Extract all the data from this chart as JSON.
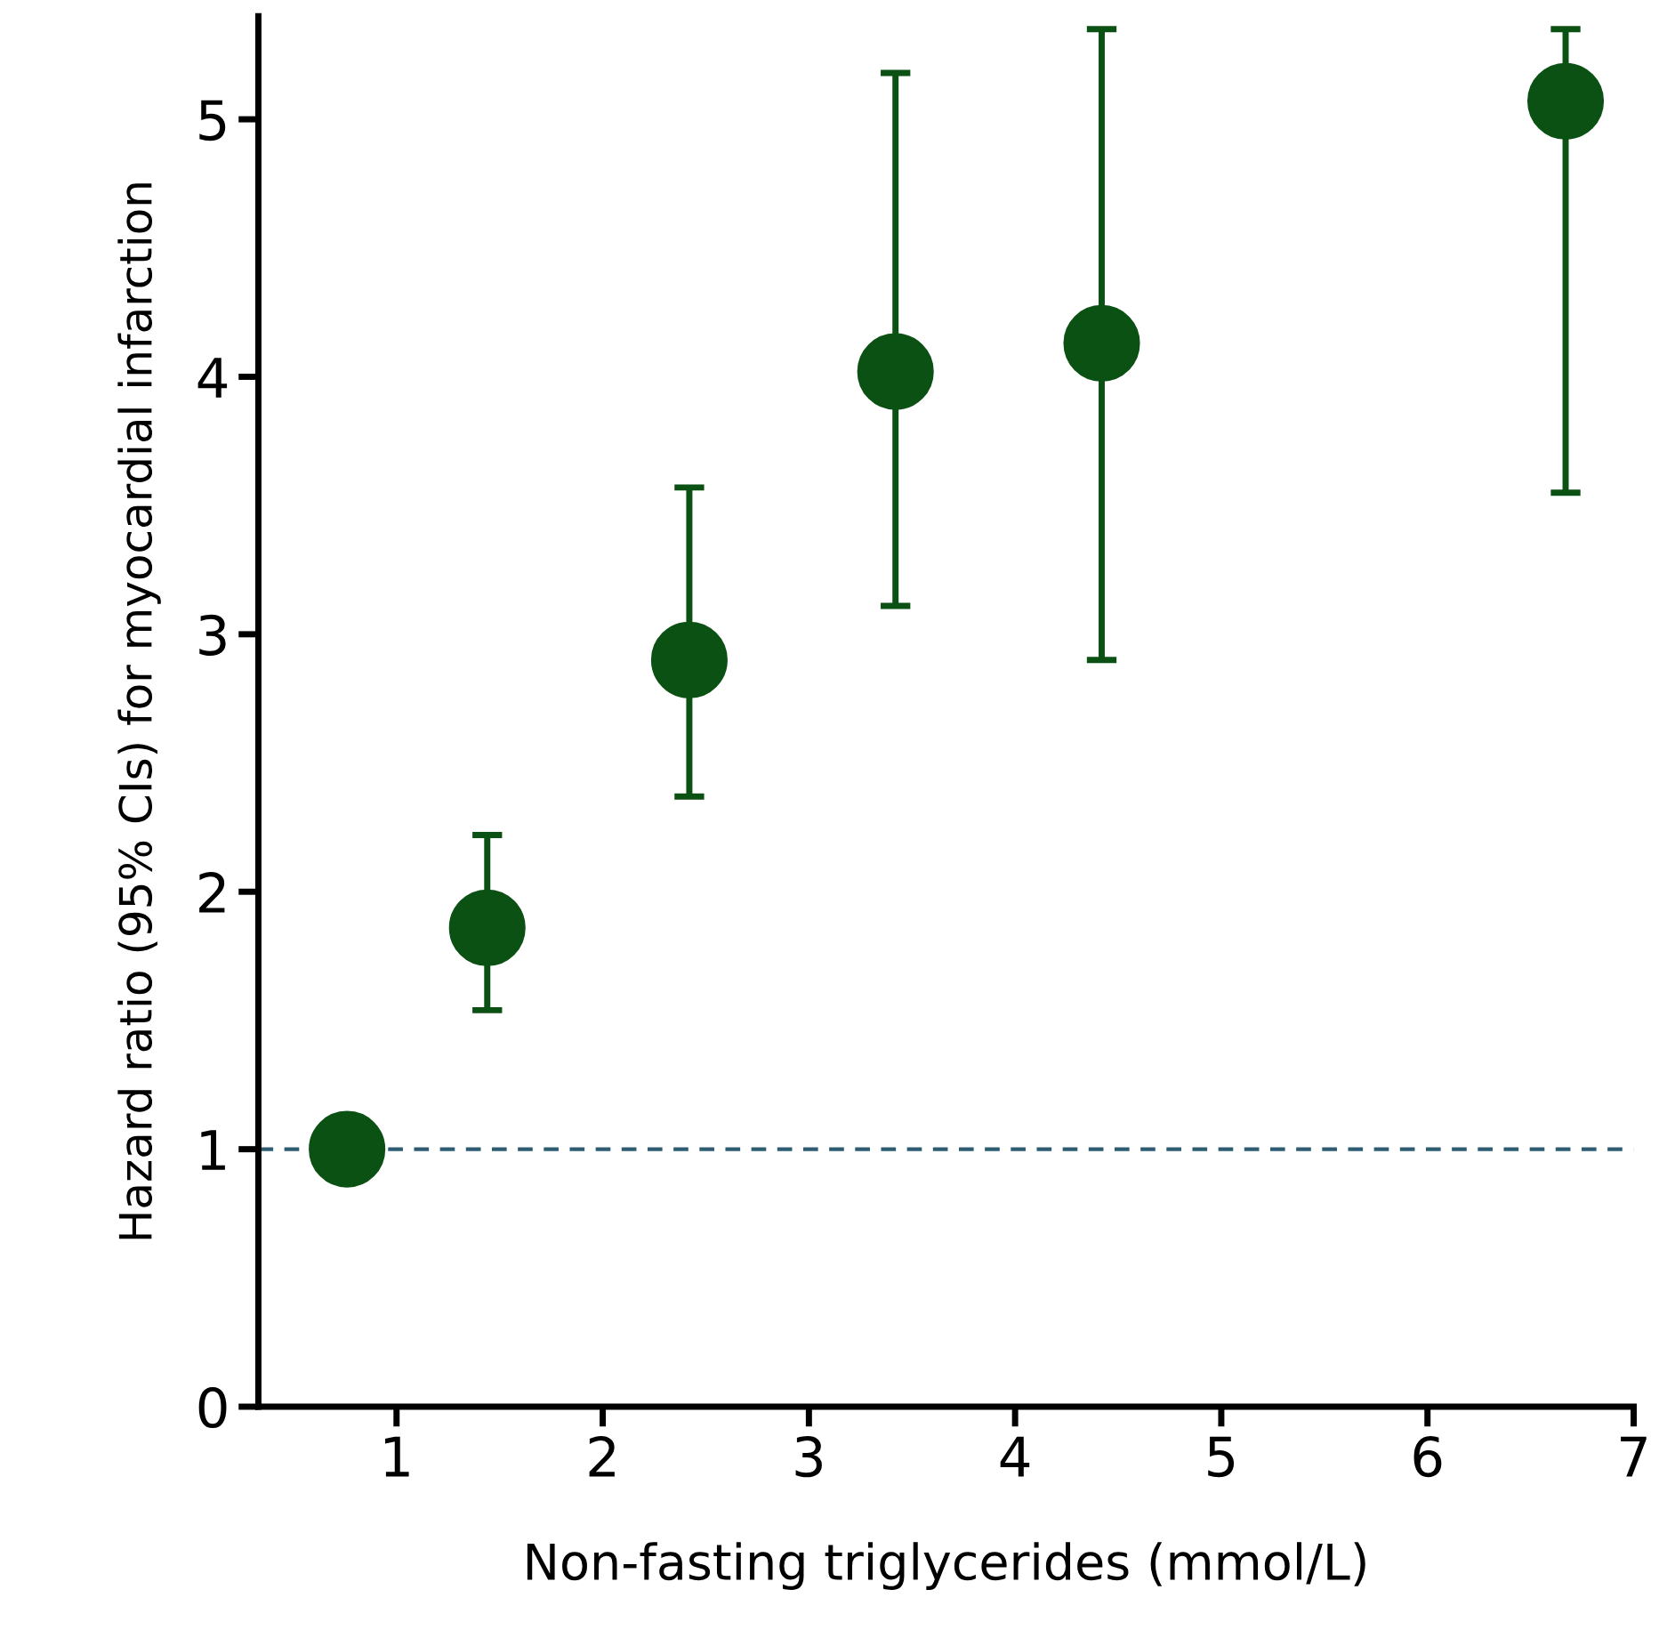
{
  "chart_data": {
    "type": "scatter",
    "xlabel": "Non-fasting triglycerides (mmol/L)",
    "ylabel": "Hazard ratio (95% CIs) for myocardial infarction",
    "series": [
      {
        "color": "#0b5114",
        "x": [
          0.76,
          1.44,
          2.42,
          3.42,
          4.42,
          6.67
        ],
        "values": [
          1.0,
          1.86,
          2.9,
          4.02,
          4.13,
          5.07
        ],
        "errors": [
          null,
          [
            1.54,
            2.22
          ],
          [
            2.37,
            3.57
          ],
          [
            3.11,
            5.18
          ],
          [
            2.9,
            5.35
          ],
          [
            3.55,
            5.35
          ]
        ]
      }
    ],
    "xlim": [
      0.33,
      7.0
    ],
    "xticks": [
      1,
      2,
      3,
      4,
      5,
      6,
      7
    ],
    "ylim": [
      0,
      5.4
    ],
    "yticks": [
      0,
      1,
      2,
      3,
      4,
      5
    ],
    "ref_lines": [
      {
        "axis": "y",
        "value": 1,
        "color": "#2e5d73",
        "line_style": "dashed"
      }
    ],
    "marker": "circle",
    "grid": false,
    "legend": false
  }
}
